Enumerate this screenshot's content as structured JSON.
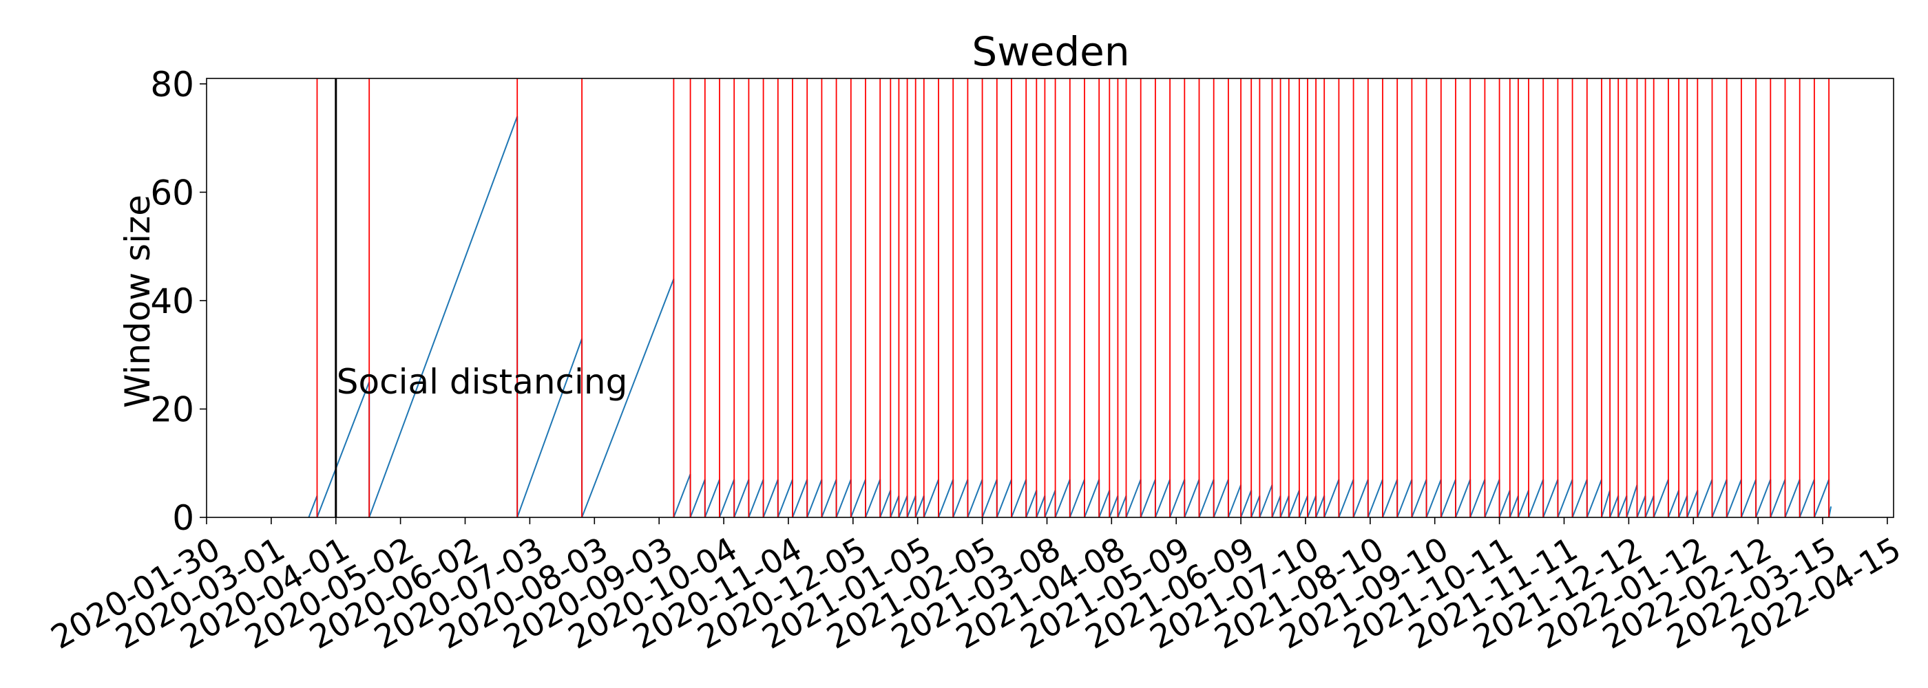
{
  "chart_data": {
    "type": "line",
    "title": "Sweden",
    "xlabel": "",
    "ylabel": "Window size",
    "xlim": [
      "2020-01-30",
      "2022-04-18"
    ],
    "ylim": [
      0,
      81
    ],
    "x_ticks": [
      "2020-01-30",
      "2020-03-01",
      "2020-04-01",
      "2020-05-02",
      "2020-06-02",
      "2020-07-03",
      "2020-08-03",
      "2020-09-03",
      "2020-10-04",
      "2020-11-04",
      "2020-12-05",
      "2021-01-05",
      "2021-02-05",
      "2021-03-08",
      "2021-04-08",
      "2021-05-09",
      "2021-06-09",
      "2021-07-10",
      "2021-08-10",
      "2021-09-10",
      "2021-10-11",
      "2021-11-11",
      "2021-12-12",
      "2022-01-12",
      "2022-02-12",
      "2022-03-15",
      "2022-04-15"
    ],
    "y_ticks": [
      0,
      20,
      40,
      60,
      80
    ],
    "grid": false,
    "annotation": {
      "text": "Social distancing",
      "date": "2020-04-01",
      "y": 25
    },
    "window_segments": [
      {
        "start": "2020-03-19",
        "end": "2020-03-23",
        "peak": 4
      },
      {
        "start": "2020-03-23",
        "end": "2020-04-17",
        "peak": 25
      },
      {
        "start": "2020-04-17",
        "end": "2020-06-27",
        "peak": 74
      },
      {
        "start": "2020-06-27",
        "end": "2020-07-28",
        "peak": 33
      },
      {
        "start": "2020-07-28",
        "end": "2020-09-10",
        "peak": 44
      },
      {
        "start": "2020-09-10",
        "end": "2020-09-18",
        "peak": 8
      },
      {
        "start": "2020-09-18",
        "end": "2020-09-25",
        "peak": 7
      },
      {
        "start": "2020-09-25",
        "end": "2020-10-02",
        "peak": 7
      },
      {
        "start": "2020-10-02",
        "end": "2020-10-09",
        "peak": 7
      },
      {
        "start": "2020-10-09",
        "end": "2020-10-16",
        "peak": 7
      },
      {
        "start": "2020-10-16",
        "end": "2020-10-23",
        "peak": 7
      },
      {
        "start": "2020-10-23",
        "end": "2020-10-30",
        "peak": 7
      },
      {
        "start": "2020-10-30",
        "end": "2020-11-06",
        "peak": 7
      },
      {
        "start": "2020-11-06",
        "end": "2020-11-13",
        "peak": 7
      },
      {
        "start": "2020-11-13",
        "end": "2020-11-20",
        "peak": 7
      },
      {
        "start": "2020-11-20",
        "end": "2020-11-27",
        "peak": 7
      },
      {
        "start": "2020-11-27",
        "end": "2020-12-04",
        "peak": 7
      },
      {
        "start": "2020-12-04",
        "end": "2020-12-11",
        "peak": 7
      },
      {
        "start": "2020-12-11",
        "end": "2020-12-18",
        "peak": 7
      },
      {
        "start": "2020-12-18",
        "end": "2020-12-23",
        "peak": 5
      },
      {
        "start": "2020-12-23",
        "end": "2020-12-27",
        "peak": 4
      },
      {
        "start": "2020-12-27",
        "end": "2020-12-31",
        "peak": 4
      },
      {
        "start": "2020-12-31",
        "end": "2021-01-04",
        "peak": 4
      },
      {
        "start": "2021-01-04",
        "end": "2021-01-08",
        "peak": 4
      },
      {
        "start": "2021-01-08",
        "end": "2021-01-15",
        "peak": 7
      },
      {
        "start": "2021-01-15",
        "end": "2021-01-22",
        "peak": 7
      },
      {
        "start": "2021-01-22",
        "end": "2021-01-29",
        "peak": 7
      },
      {
        "start": "2021-01-29",
        "end": "2021-02-05",
        "peak": 7
      },
      {
        "start": "2021-02-05",
        "end": "2021-02-12",
        "peak": 7
      },
      {
        "start": "2021-02-12",
        "end": "2021-02-19",
        "peak": 7
      },
      {
        "start": "2021-02-19",
        "end": "2021-02-26",
        "peak": 7
      },
      {
        "start": "2021-02-26",
        "end": "2021-03-03",
        "peak": 5
      },
      {
        "start": "2021-03-03",
        "end": "2021-03-07",
        "peak": 4
      },
      {
        "start": "2021-03-07",
        "end": "2021-03-12",
        "peak": 5
      },
      {
        "start": "2021-03-12",
        "end": "2021-03-19",
        "peak": 7
      },
      {
        "start": "2021-03-19",
        "end": "2021-03-26",
        "peak": 7
      },
      {
        "start": "2021-03-26",
        "end": "2021-04-02",
        "peak": 7
      },
      {
        "start": "2021-04-02",
        "end": "2021-04-07",
        "peak": 5
      },
      {
        "start": "2021-04-07",
        "end": "2021-04-11",
        "peak": 4
      },
      {
        "start": "2021-04-11",
        "end": "2021-04-15",
        "peak": 4
      },
      {
        "start": "2021-04-15",
        "end": "2021-04-22",
        "peak": 7
      },
      {
        "start": "2021-04-22",
        "end": "2021-04-29",
        "peak": 7
      },
      {
        "start": "2021-04-29",
        "end": "2021-05-06",
        "peak": 7
      },
      {
        "start": "2021-05-06",
        "end": "2021-05-13",
        "peak": 7
      },
      {
        "start": "2021-05-13",
        "end": "2021-05-20",
        "peak": 7
      },
      {
        "start": "2021-05-20",
        "end": "2021-05-27",
        "peak": 7
      },
      {
        "start": "2021-05-27",
        "end": "2021-06-03",
        "peak": 7
      },
      {
        "start": "2021-06-03",
        "end": "2021-06-09",
        "peak": 6
      },
      {
        "start": "2021-06-09",
        "end": "2021-06-14",
        "peak": 5
      },
      {
        "start": "2021-06-14",
        "end": "2021-06-18",
        "peak": 4
      },
      {
        "start": "2021-06-18",
        "end": "2021-06-24",
        "peak": 6
      },
      {
        "start": "2021-06-24",
        "end": "2021-06-28",
        "peak": 4
      },
      {
        "start": "2021-06-28",
        "end": "2021-07-02",
        "peak": 4
      },
      {
        "start": "2021-07-02",
        "end": "2021-07-07",
        "peak": 5
      },
      {
        "start": "2021-07-07",
        "end": "2021-07-11",
        "peak": 4
      },
      {
        "start": "2021-07-11",
        "end": "2021-07-15",
        "peak": 4
      },
      {
        "start": "2021-07-15",
        "end": "2021-07-19",
        "peak": 4
      },
      {
        "start": "2021-07-19",
        "end": "2021-07-26",
        "peak": 7
      },
      {
        "start": "2021-07-26",
        "end": "2021-08-02",
        "peak": 7
      },
      {
        "start": "2021-08-02",
        "end": "2021-08-09",
        "peak": 7
      },
      {
        "start": "2021-08-09",
        "end": "2021-08-16",
        "peak": 7
      },
      {
        "start": "2021-08-16",
        "end": "2021-08-23",
        "peak": 7
      },
      {
        "start": "2021-08-23",
        "end": "2021-08-30",
        "peak": 7
      },
      {
        "start": "2021-08-30",
        "end": "2021-09-06",
        "peak": 7
      },
      {
        "start": "2021-09-06",
        "end": "2021-09-13",
        "peak": 7
      },
      {
        "start": "2021-09-13",
        "end": "2021-09-20",
        "peak": 7
      },
      {
        "start": "2021-09-20",
        "end": "2021-09-27",
        "peak": 7
      },
      {
        "start": "2021-09-27",
        "end": "2021-10-04",
        "peak": 7
      },
      {
        "start": "2021-10-04",
        "end": "2021-10-11",
        "peak": 7
      },
      {
        "start": "2021-10-11",
        "end": "2021-10-16",
        "peak": 5
      },
      {
        "start": "2021-10-16",
        "end": "2021-10-20",
        "peak": 4
      },
      {
        "start": "2021-10-20",
        "end": "2021-10-25",
        "peak": 5
      },
      {
        "start": "2021-10-25",
        "end": "2021-11-01",
        "peak": 7
      },
      {
        "start": "2021-11-01",
        "end": "2021-11-08",
        "peak": 7
      },
      {
        "start": "2021-11-08",
        "end": "2021-11-15",
        "peak": 7
      },
      {
        "start": "2021-11-15",
        "end": "2021-11-22",
        "peak": 7
      },
      {
        "start": "2021-11-22",
        "end": "2021-11-29",
        "peak": 7
      },
      {
        "start": "2021-11-29",
        "end": "2021-12-03",
        "peak": 5
      },
      {
        "start": "2021-12-03",
        "end": "2021-12-07",
        "peak": 4
      },
      {
        "start": "2021-12-07",
        "end": "2021-12-11",
        "peak": 4
      },
      {
        "start": "2021-12-11",
        "end": "2021-12-16",
        "peak": 6
      },
      {
        "start": "2021-12-16",
        "end": "2021-12-20",
        "peak": 4
      },
      {
        "start": "2021-12-20",
        "end": "2021-12-24",
        "peak": 4
      },
      {
        "start": "2021-12-24",
        "end": "2021-12-31",
        "peak": 7
      },
      {
        "start": "2021-12-31",
        "end": "2022-01-05",
        "peak": 5
      },
      {
        "start": "2022-01-05",
        "end": "2022-01-09",
        "peak": 4
      },
      {
        "start": "2022-01-09",
        "end": "2022-01-14",
        "peak": 5
      },
      {
        "start": "2022-01-14",
        "end": "2022-01-21",
        "peak": 7
      },
      {
        "start": "2022-01-21",
        "end": "2022-01-28",
        "peak": 7
      },
      {
        "start": "2022-01-28",
        "end": "2022-02-04",
        "peak": 7
      },
      {
        "start": "2022-02-04",
        "end": "2022-02-11",
        "peak": 7
      },
      {
        "start": "2022-02-11",
        "end": "2022-02-18",
        "peak": 7
      },
      {
        "start": "2022-02-18",
        "end": "2022-02-25",
        "peak": 7
      },
      {
        "start": "2022-02-25",
        "end": "2022-03-04",
        "peak": 7
      },
      {
        "start": "2022-03-04",
        "end": "2022-03-11",
        "peak": 7
      },
      {
        "start": "2022-03-11",
        "end": "2022-03-18",
        "peak": 7
      },
      {
        "start": "2022-03-18",
        "end": "2022-03-19",
        "peak": 2
      }
    ]
  },
  "colors": {
    "window_line": "#1f77b4",
    "change_point": "#ff0000",
    "intervention_line": "#000000",
    "axes": "#000000",
    "background": "#ffffff"
  }
}
